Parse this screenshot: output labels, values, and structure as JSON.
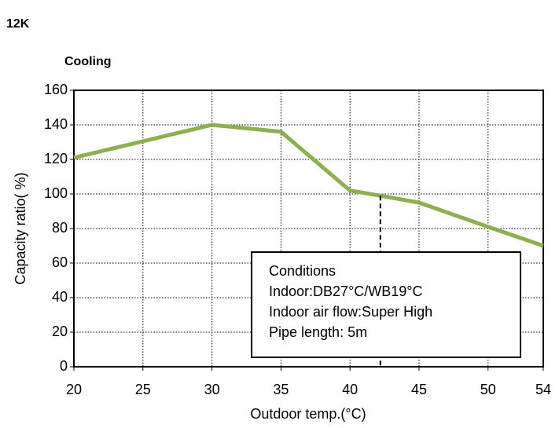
{
  "chart_data": {
    "type": "line",
    "model": "12K",
    "title": "Cooling",
    "x_label": "Outdoor temp.(°C)",
    "y_label": "Capacity ratio( %)",
    "x": [
      20,
      30,
      35,
      40,
      42.2,
      45,
      50,
      54
    ],
    "series": [
      {
        "name": "Capacity ratio",
        "color": "#8cb050",
        "values": [
          121,
          140,
          136,
          102,
          99,
          95,
          81,
          70
        ]
      }
    ],
    "marker_index": 4,
    "xlim": [
      20,
      54
    ],
    "xticks": [
      20,
      25,
      30,
      35,
      40,
      45,
      50,
      54
    ],
    "ylim": [
      0,
      160
    ],
    "yticks": [
      0,
      20,
      40,
      60,
      80,
      100,
      120,
      140,
      160
    ],
    "grid": true,
    "conditions": [
      "Conditions",
      "Indoor:DB27°C/WB19°C",
      "Indoor air flow:Super High",
      "Pipe length: 5m"
    ]
  }
}
